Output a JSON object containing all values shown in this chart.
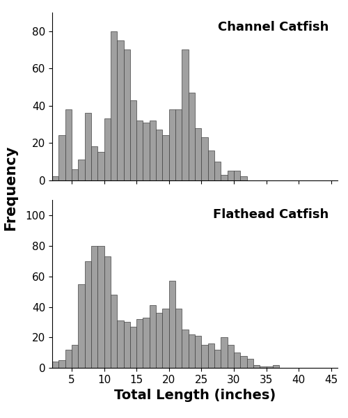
{
  "channel_catfish": {
    "title": "Channel Catfish",
    "bar_left_edges": [
      2,
      3,
      4,
      5,
      6,
      7,
      8,
      9,
      10,
      11,
      12,
      13,
      14,
      15,
      16,
      17,
      18,
      19,
      20,
      21,
      22,
      23,
      24,
      25,
      26,
      27,
      28,
      29,
      30,
      31,
      32,
      33,
      34,
      35,
      36,
      37,
      38,
      39,
      40,
      41
    ],
    "frequencies": [
      2,
      24,
      38,
      6,
      11,
      36,
      18,
      15,
      33,
      80,
      75,
      70,
      43,
      32,
      31,
      32,
      27,
      24,
      38,
      38,
      70,
      47,
      28,
      23,
      16,
      10,
      3,
      5,
      5,
      2,
      0,
      0,
      0,
      0,
      0,
      0,
      0,
      0,
      0,
      0
    ],
    "ylim": [
      0,
      90
    ],
    "yticks": [
      0,
      20,
      40,
      60,
      80
    ]
  },
  "flathead_catfish": {
    "title": "Flathead Catfish",
    "bar_left_edges": [
      2,
      3,
      4,
      5,
      6,
      7,
      8,
      9,
      10,
      11,
      12,
      13,
      14,
      15,
      16,
      17,
      18,
      19,
      20,
      21,
      22,
      23,
      24,
      25,
      26,
      27,
      28,
      29,
      30,
      31,
      32,
      33,
      34,
      35,
      36,
      37,
      38,
      39,
      40,
      41,
      42,
      43,
      44
    ],
    "frequencies": [
      4,
      5,
      12,
      15,
      55,
      70,
      80,
      80,
      73,
      48,
      31,
      30,
      27,
      32,
      33,
      41,
      36,
      39,
      57,
      39,
      25,
      22,
      21,
      15,
      16,
      12,
      20,
      15,
      10,
      8,
      6,
      2,
      1,
      1,
      2,
      0,
      0,
      0,
      0,
      0,
      0,
      0,
      0
    ],
    "ylim": [
      0,
      110
    ],
    "yticks": [
      0,
      20,
      40,
      60,
      80,
      100
    ]
  },
  "bar_color": "#a0a0a0",
  "bar_edgecolor": "#404040",
  "xlabel": "Total Length (inches)",
  "ylabel": "Frequency",
  "xlim": [
    2,
    46
  ],
  "xticks": [
    5,
    10,
    15,
    20,
    25,
    30,
    35,
    40,
    45
  ],
  "bar_width": 1.0,
  "title_fontsize": 13,
  "label_fontsize": 14,
  "tick_fontsize": 11,
  "ylabel_fontsize": 15
}
